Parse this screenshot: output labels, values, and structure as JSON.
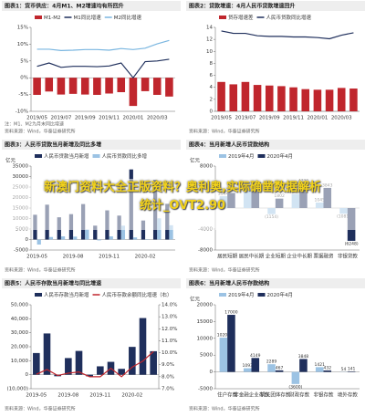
{
  "chart_data": [
    {
      "type": "combo",
      "title": "图表1：货币供应：4月M1、M2增速均有所回升",
      "note": "注：M1、M2为月末同比增速",
      "source": "资料来源：Wind，华泰证券研究所",
      "categories": [
        "2019/05",
        null,
        "2019/07",
        null,
        "2019/09",
        null,
        "2019/11",
        null,
        "2020/01",
        null,
        "2020/03",
        null
      ],
      "series": [
        {
          "name": "M1-M2",
          "type": "bar",
          "color": "#c0262d",
          "values": [
            -5.1,
            -4.1,
            -5.0,
            -4.8,
            -5.0,
            -5.1,
            -4.7,
            -4.3,
            -8.4,
            -4.0,
            -5.1,
            -5.6
          ]
        },
        {
          "name": "M1同比增速",
          "type": "line",
          "color": "#1f2f5c",
          "values": [
            3.4,
            4.4,
            3.1,
            3.4,
            3.4,
            3.3,
            3.5,
            4.4,
            0.0,
            4.8,
            5.0,
            5.5
          ]
        },
        {
          "name": "M2同比增速",
          "type": "line",
          "color": "#7ab6e0",
          "values": [
            8.5,
            8.5,
            8.1,
            8.2,
            8.4,
            8.4,
            8.2,
            8.7,
            8.4,
            8.8,
            10.1,
            11.1
          ]
        }
      ],
      "ylim": [
        -10,
        15
      ],
      "yticks": [
        {
          "value": -10,
          "label": "-10%"
        },
        {
          "value": -5,
          "label": "-5%"
        },
        {
          "value": 0,
          "label": "0%"
        },
        {
          "value": 5,
          "label": "5%"
        },
        {
          "value": 10,
          "label": "10%"
        },
        {
          "value": 15,
          "label": "15%"
        }
      ],
      "grid": false
    },
    {
      "type": "combo",
      "title": "图表2：贷款增速：4月人民币贷款增速回升",
      "source": "资料来源：Wind，华泰证券研究所",
      "categories": [
        "2019/05",
        null,
        "2019/07",
        null,
        "2019/09",
        null,
        "2019/11",
        null,
        "2020/01",
        null,
        "2020/03",
        null
      ],
      "series": [
        {
          "name": "贷存增速差",
          "type": "bar",
          "color": "#c0262d",
          "values": [
            4.9,
            4.5,
            4.9,
            4.4,
            4.3,
            4.2,
            4.0,
            3.7,
            3.6,
            3.6,
            3.9,
            3.8
          ]
        },
        {
          "name": "人民币贷款同比增速",
          "type": "line",
          "color": "#1f2f5c",
          "values": [
            13.4,
            13.0,
            13.0,
            12.6,
            12.5,
            12.5,
            12.4,
            12.4,
            12.3,
            12.1,
            12.7,
            13.1
          ]
        }
      ],
      "ylim": [
        0,
        14
      ],
      "yticks": [
        0,
        2,
        4,
        6,
        8,
        10,
        12,
        14
      ],
      "grid": false
    },
    {
      "type": "combo",
      "title": "图表3：人民币贷款当月新增及同比多增",
      "ylabel": "亿元",
      "source": "资料来源：Wind，华泰证券研究所",
      "categories": [
        "2019-05",
        null,
        null,
        "2019-08",
        null,
        null,
        "2019-11",
        null,
        null,
        "2020-02",
        null,
        null
      ],
      "series": [
        {
          "name": "人民币贷款当月新增",
          "type": "bar",
          "color": "#1f2f5c",
          "values": [
            11800,
            16600,
            10600,
            12100,
            16900,
            6613,
            13900,
            11400,
            33400,
            9057,
            28500,
            17000
          ]
        },
        {
          "name": "人民币贷款同比多增",
          "type": "bar",
          "color": "#9cc3e4",
          "values": [
            -2400,
            1200,
            1500,
            1400,
            4800,
            -409,
            1500,
            6600,
            1000,
            184,
            10100,
            6800
          ]
        }
      ],
      "ylim": [
        -5000,
        35000
      ],
      "yticks": [
        -5000,
        0,
        5000,
        10000,
        15000,
        20000,
        25000,
        30000,
        35000
      ],
      "grid": false
    },
    {
      "type": "combo",
      "title": "图表4：当月新增人民币贷款结构",
      "ylabel": "亿元",
      "source": "资料来源：Wind，华泰证券研究所",
      "data_labels": true,
      "categories": [
        "居民短期",
        "居民中长期",
        "企业短期",
        "企业中长期",
        "票据融资",
        "非银贷款"
      ],
      "series": [
        {
          "name": "2019年4月",
          "type": "bar",
          "color": "#9cc3e4",
          "values": [
            2264,
            3561,
            -1154,
            2690,
            1045,
            -1081
          ],
          "value_labels": [
            "2264",
            "3561",
            "(1154)",
            "2690",
            "1045",
            "(1081)"
          ]
        },
        {
          "name": "2020年4月",
          "type": "bar",
          "color": "#1f2f5c",
          "values": [
            2883,
            3975,
            1802,
            4720,
            3843,
            -6248
          ],
          "value_labels": [
            "2883",
            "3975",
            "1802",
            "4720",
            "3843",
            "(6248)"
          ]
        }
      ],
      "ylim": [
        -8000,
        8000
      ],
      "yticks": [
        -8000,
        -4000,
        0,
        4000,
        8000
      ],
      "grid": false
    },
    {
      "type": "combo",
      "title": "图表5：人民币存款当月新增与同比增速",
      "source": "资料来源：Wind，华泰证券研究所",
      "categories": [
        "2019-05",
        null,
        null,
        "2019-08",
        null,
        null,
        "2019-11",
        null,
        null,
        "2020-02",
        null,
        null
      ],
      "series": [
        {
          "name": "人民币存款当月新增",
          "type": "bar",
          "color": "#1f2f5c",
          "values": [
            15500,
            29500,
            -1100,
            11900,
            17000,
            -1200,
            6000,
            9200,
            4200,
            19900,
            40500,
            16800
          ]
        },
        {
          "name": "人民币存款余额同比增速（右）",
          "type": "line",
          "color": "#c0262d",
          "axis": "y2",
          "values": [
            8.2,
            8.6,
            8.1,
            8.3,
            8.4,
            8.0,
            8.0,
            8.7,
            8.0,
            8.8,
            9.3,
            10.1
          ]
        }
      ],
      "ylim": [
        -10000,
        50000
      ],
      "yticks": [
        {
          "value": -10000,
          "label": "(10,000)"
        },
        {
          "value": 0,
          "label": "0"
        },
        {
          "value": 10000,
          "label": "10,000"
        },
        {
          "value": 20000,
          "label": "20,000"
        },
        {
          "value": 30000,
          "label": "30,000"
        },
        {
          "value": 40000,
          "label": "40,000"
        },
        {
          "value": 50000,
          "label": "50,000"
        }
      ],
      "y2lim": [
        7,
        14
      ],
      "y2ticks": [
        {
          "value": 7,
          "label": "7.0%"
        },
        {
          "value": 8,
          "label": "8.0%"
        },
        {
          "value": 9,
          "label": "9.0%"
        },
        {
          "value": 10,
          "label": "10.0%"
        },
        {
          "value": 11,
          "label": "11.0%"
        },
        {
          "value": 12,
          "label": "12.0%"
        },
        {
          "value": 13,
          "label": "13.0%"
        },
        {
          "value": 14,
          "label": "14.0%"
        }
      ],
      "grid": false
    },
    {
      "type": "combo",
      "title": "图表6：当月新增人民币存款结构",
      "ylabel": "亿元",
      "source": "资料来源：Wind，华泰证券研究所",
      "data_labels": true,
      "categories": [
        "住户存款",
        "非金融企业存款",
        "机关团体存款",
        "财政存款",
        "非银存款",
        "境外存款"
      ],
      "series": [
        {
          "name": "2019年4月",
          "type": "bar",
          "color": "#9cc3e4",
          "values": [
            10200,
            1093,
            2289,
            -3600,
            1421,
            54
          ],
          "value_labels": [
            "10200",
            "1093",
            "2289",
            "(3600)",
            "1421",
            "54"
          ]
        },
        {
          "name": "2020年4月",
          "type": "bar",
          "color": "#1f2f5c",
          "values": [
            17000,
            4149,
            467,
            3848,
            432,
            141
          ]
        }
      ],
      "ylim": [
        -5000,
        20000
      ],
      "yticks": [
        -5000,
        0,
        5000,
        10000,
        15000,
        20000
      ],
      "grid": false
    }
  ],
  "banner": {
    "line1": "新澳门资料大全正版资料？奥利奥,实际确凿数据解析",
    "line2": "统计_OVT2.90"
  }
}
